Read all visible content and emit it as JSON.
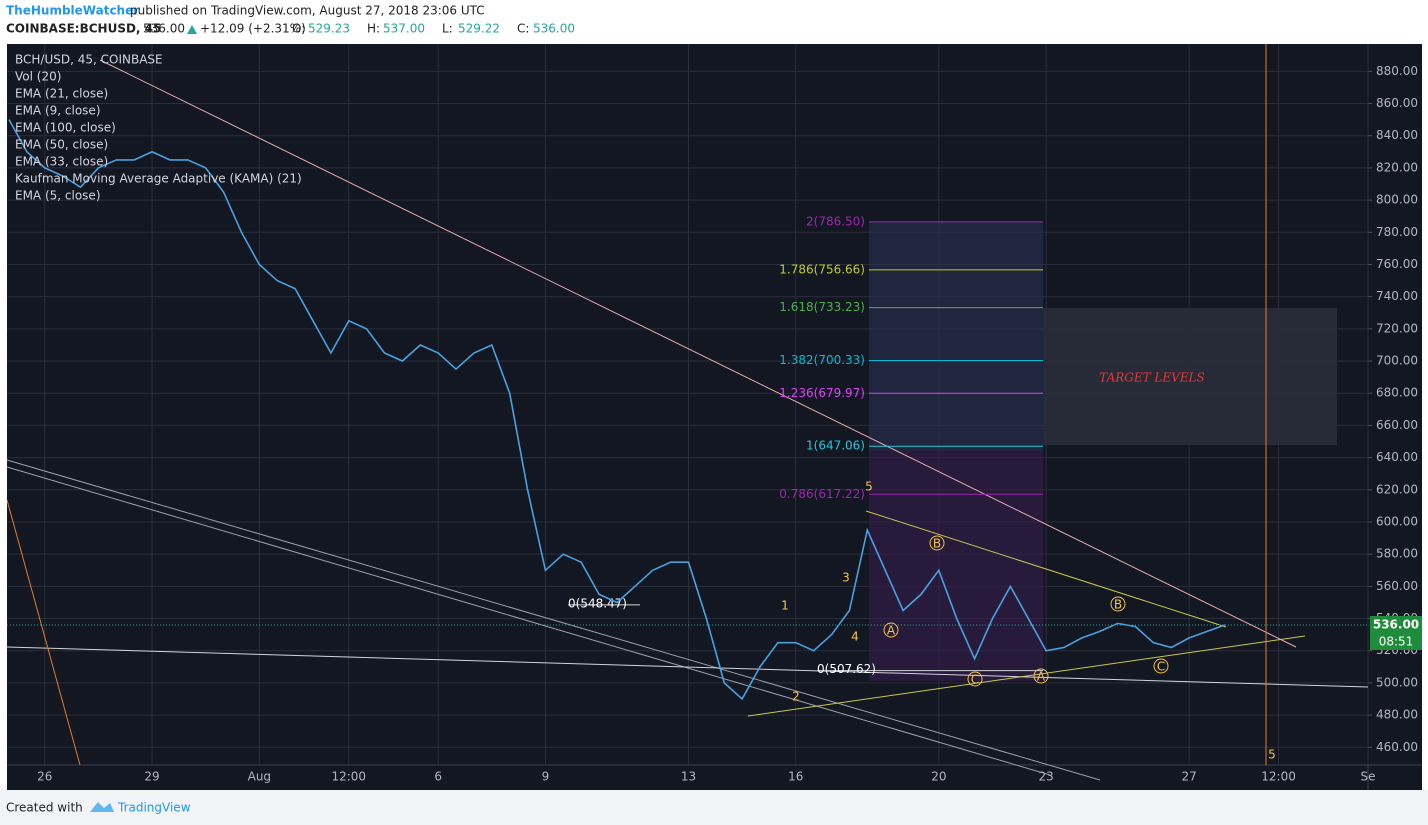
{
  "chart_data": {
    "type": "line",
    "author": "TheHumbleWatcher",
    "published": "published on TradingView.com, August 27, 2018 23:06 UTC",
    "symbol": "COINBASE:BCHUSD, 45",
    "last": "536.00",
    "change": "+12.09 (+2.31%)",
    "ohlc": [
      [
        "O:",
        "529.23"
      ],
      [
        "H:",
        "537.00"
      ],
      [
        "L:",
        "529.22"
      ],
      [
        "C:",
        "536.00"
      ]
    ],
    "legend": [
      "BCH/USD, 45, COINBASE",
      "Vol (20)",
      "EMA (21, close)",
      "EMA (9, close)",
      "EMA (100, close)",
      "EMA (50, close)",
      "EMA (33, close)",
      "Kaufman Moving Average Adaptive (KAMA) (21)",
      "EMA (5, close)"
    ],
    "categories": [
      null,
      null,
      "26",
      null,
      null,
      null,
      null,
      null,
      "29",
      null,
      null,
      null,
      null,
      null,
      "Aug",
      null,
      null,
      null,
      null,
      "12:00",
      null,
      null,
      null,
      null,
      "6",
      null,
      null,
      null,
      null,
      null,
      "9",
      null,
      null,
      null,
      null,
      null,
      null,
      null,
      "13",
      null,
      null,
      null,
      null,
      null,
      "16",
      null,
      null,
      null,
      null,
      null,
      null,
      null,
      "20",
      null,
      null,
      null,
      null,
      null,
      "23",
      null,
      null,
      null,
      null,
      null,
      null,
      null,
      "27",
      null,
      null,
      null,
      null,
      "12:00",
      null,
      null,
      null,
      null,
      "Se"
    ],
    "values": [
      850,
      830,
      820,
      815,
      808,
      820,
      825,
      825,
      830,
      825,
      825,
      820,
      805,
      780,
      760,
      750,
      745,
      725,
      705,
      725,
      720,
      705,
      700,
      710,
      705,
      695,
      705,
      710,
      680,
      620,
      570,
      580,
      575,
      555,
      550,
      560,
      570,
      575,
      575,
      540,
      500,
      490,
      510,
      525,
      525,
      520,
      530,
      545,
      595,
      570,
      545,
      555,
      570,
      540,
      515,
      540,
      560,
      540,
      520,
      522,
      528,
      532,
      537,
      535,
      525,
      522,
      528,
      532,
      536,
      null,
      null,
      null,
      null,
      null,
      null,
      null,
      null
    ],
    "color": "#4aa0e0",
    "ylim": [
      449,
      897
    ],
    "yticks": [
      {
        "value": 460,
        "label": "460.00"
      },
      {
        "value": 480,
        "label": "480.00"
      },
      {
        "value": 500,
        "label": "500.00"
      },
      {
        "value": 520,
        "label": "520.00"
      },
      {
        "value": 540,
        "label": "540.00"
      },
      {
        "value": 560,
        "label": "560.00"
      },
      {
        "value": 580,
        "label": "580.00"
      },
      {
        "value": 600,
        "label": "600.00"
      },
      {
        "value": 620,
        "label": "620.00"
      },
      {
        "value": 640,
        "label": "640.00"
      },
      {
        "value": 660,
        "label": "660.00"
      },
      {
        "value": 680,
        "label": "680.00"
      },
      {
        "value": 700,
        "label": "700.00"
      },
      {
        "value": 720,
        "label": "720.00"
      },
      {
        "value": 740,
        "label": "740.00"
      },
      {
        "value": 760,
        "label": "760.00"
      },
      {
        "value": 780,
        "label": "780.00"
      },
      {
        "value": 800,
        "label": "800.00"
      },
      {
        "value": 820,
        "label": "820.00"
      },
      {
        "value": 840,
        "label": "840.00"
      },
      {
        "value": 860,
        "label": "860.00"
      },
      {
        "value": 880,
        "label": "880.00"
      }
    ],
    "grid": true,
    "price_marker": {
      "value": 536,
      "label": "536.00"
    },
    "countdown": "08:51",
    "fib_levels": [
      {
        "label": "2(786.50)",
        "value": 786.5,
        "color": "#9c27b0"
      },
      {
        "label": "1.786(756.66)",
        "value": 756.66,
        "color": "#c0ca33"
      },
      {
        "label": "1.618(733.23)",
        "value": 733.23,
        "color": "#4caf50"
      },
      {
        "label": "1.382(700.33)",
        "value": 700.33,
        "color": "#00bcd4"
      },
      {
        "label": "1.236(679.97)",
        "value": 679.97,
        "color": "#e040fb"
      },
      {
        "label": "1(647.06)",
        "value": 647.06,
        "color": "#26c6da"
      },
      {
        "label": "0.786(617.22)",
        "value": 617.22,
        "color": "#9c27b0"
      }
    ],
    "base_levels": [
      {
        "label": "0(548.47)",
        "value": 548.47
      },
      {
        "label": "0(507.62)",
        "value": 507.62
      }
    ],
    "target_label": "TARGET LEVELS",
    "wave_labels": [
      "1",
      "2",
      "3",
      "4",
      "5"
    ],
    "abc_labels": [
      "A",
      "B",
      "C",
      "A",
      "B",
      "C"
    ],
    "cycle_label": "5",
    "footer": [
      "Created with",
      "TradingView"
    ]
  }
}
